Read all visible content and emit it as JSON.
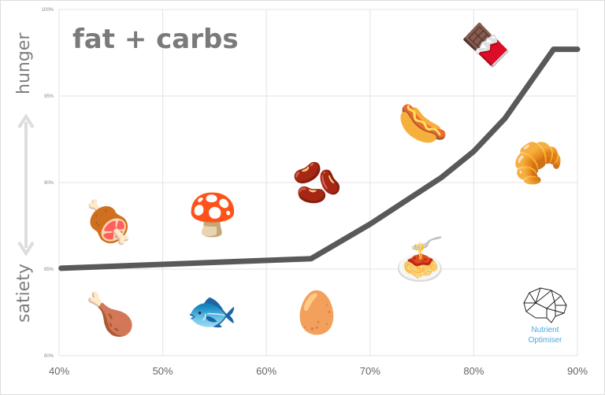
{
  "chart_data": {
    "type": "line",
    "title": "fat + carbs",
    "x": [
      40.2,
      64.3,
      70,
      76.9,
      80,
      83,
      87.7,
      90
    ],
    "y": [
      85.05,
      85.6,
      87.6,
      90.3,
      91.8,
      93.7,
      97.7,
      97.7
    ],
    "xlim": [
      40,
      90
    ],
    "ylim": [
      80,
      100
    ],
    "xticks": [
      "40%",
      "50%",
      "60%",
      "70%",
      "80%",
      "90%"
    ],
    "yticks": [
      "80%",
      "85%",
      "90%",
      "95%",
      "100%"
    ],
    "xtick_values": [
      40,
      50,
      60,
      70,
      80,
      90
    ],
    "ytick_values": [
      80,
      85,
      90,
      95,
      100
    ],
    "ylabel_top": "hunger",
    "ylabel_bottom": "satiety",
    "grid": true,
    "line_color": "#595959"
  },
  "logo": {
    "line1": "Nutrient",
    "line2": "Optimiser",
    "color": "#4aa8e0"
  },
  "foods": [
    {
      "name": "ham-image",
      "icon": "🍖"
    },
    {
      "name": "mushroom-image",
      "icon": "🍄"
    },
    {
      "name": "lentils-image",
      "icon": "🫘"
    },
    {
      "name": "sausage-image",
      "icon": "🌭"
    },
    {
      "name": "brownie-image",
      "icon": "🍫"
    },
    {
      "name": "croissant-image",
      "icon": "🥐"
    },
    {
      "name": "chicken-image",
      "icon": "🍗"
    },
    {
      "name": "sardines-image",
      "icon": "🐟"
    },
    {
      "name": "eggs-image",
      "icon": "🥚"
    },
    {
      "name": "lasagna-image",
      "icon": "🍝"
    }
  ]
}
